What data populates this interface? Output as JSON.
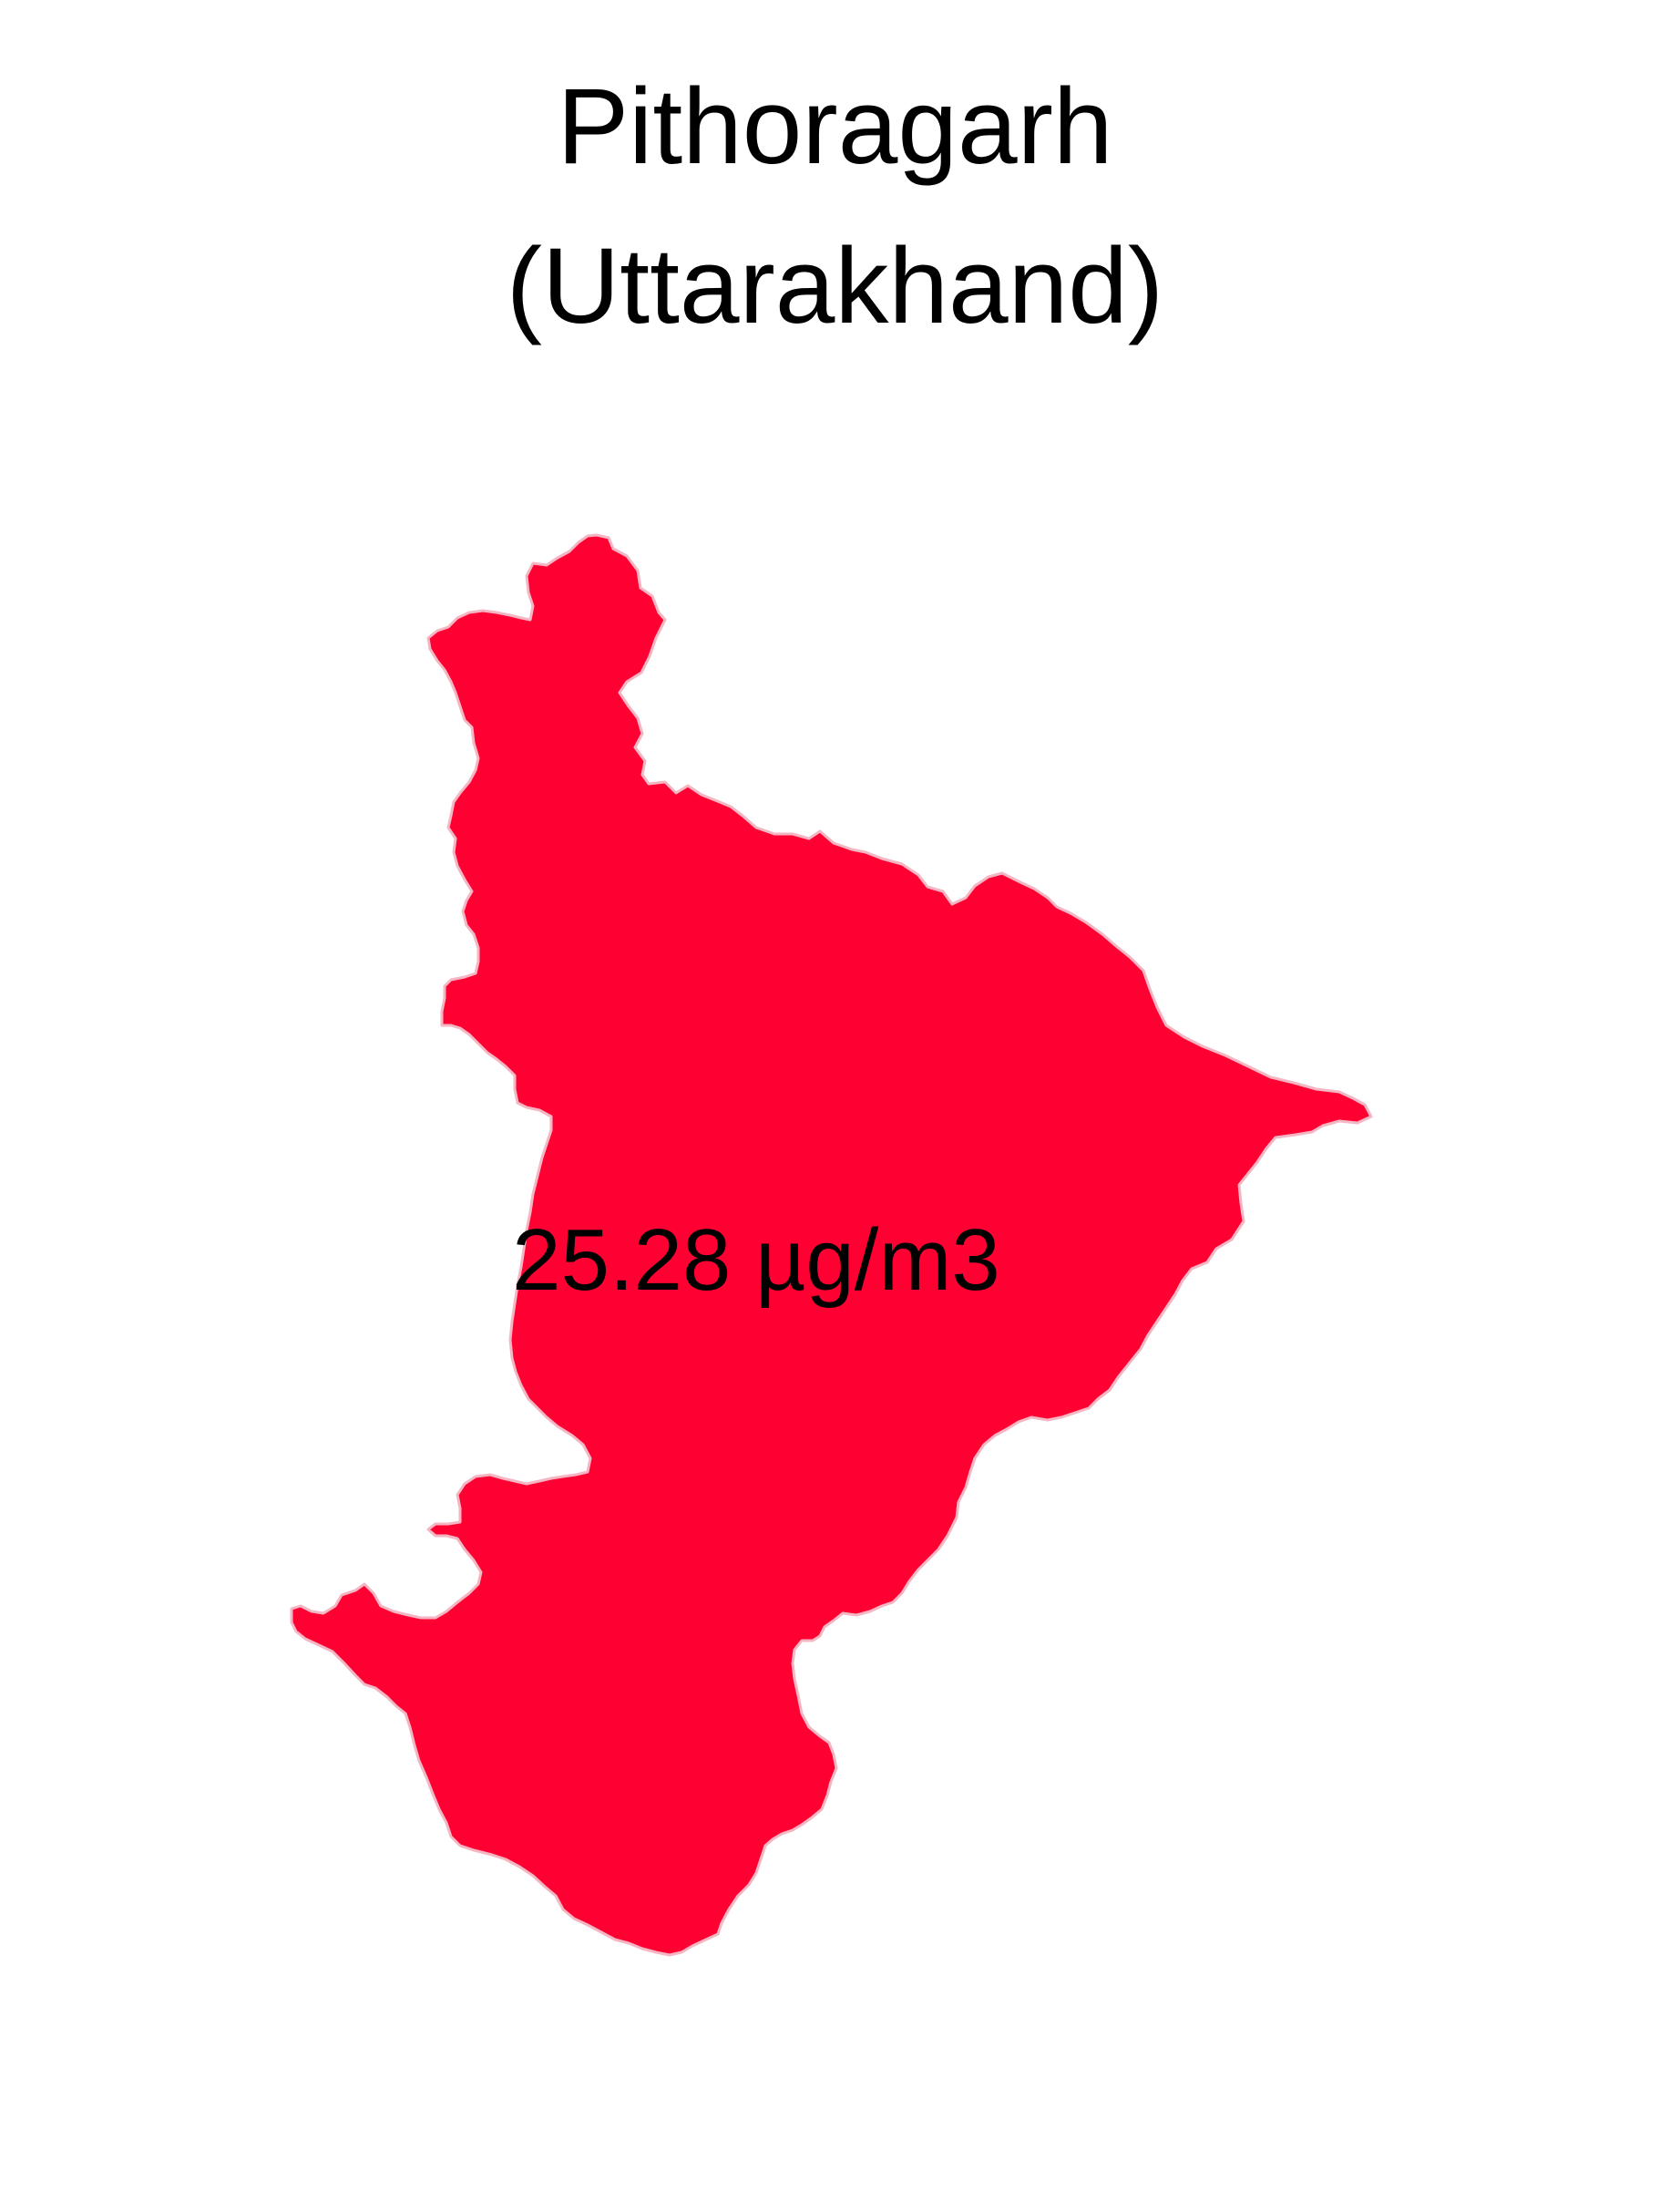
{
  "title": {
    "line1": "Pithoragarh",
    "line2": "(Uttarakhand)"
  },
  "region": {
    "value_label": "25.28 µg/m3",
    "fill_color": "#FF0033",
    "stroke_color": "#f3b6c2"
  }
}
